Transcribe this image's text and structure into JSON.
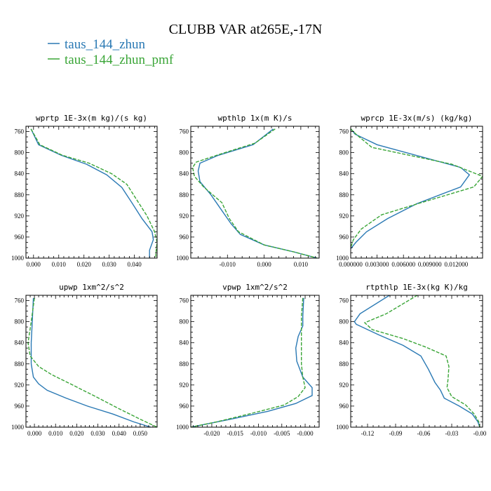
{
  "figure": {
    "title": "CLUBB VAR at265E,-17N",
    "legend": [
      {
        "label": "taus_144_zhun",
        "color": "#2a79b4",
        "dash": "solid"
      },
      {
        "label": "taus_144_zhun_pmf",
        "color": "#3aa537",
        "dash": "dashed"
      }
    ]
  },
  "chart_data": [
    {
      "type": "line",
      "title": "wprtp  1E-3x(m kg)/(s kg)",
      "xlim": [
        -0.003,
        0.049
      ],
      "ylim": [
        1000,
        750
      ],
      "y_reversed": true,
      "xticks": [
        0.0,
        0.01,
        0.02,
        0.03,
        0.04
      ],
      "xtick_labels": [
        "0.000",
        "0.010",
        "0.020",
        "0.030",
        "0.040"
      ],
      "yticks": [
        760,
        800,
        840,
        880,
        920,
        960,
        1000
      ],
      "ytick_labels": [
        "760",
        "800",
        "840",
        "880",
        "920",
        "960",
        "1000"
      ],
      "series": [
        {
          "name": "taus_144_zhun",
          "points": [
            [
              -0.001,
              755
            ],
            [
              0.002,
              785
            ],
            [
              0.011,
              805
            ],
            [
              0.021,
              822
            ],
            [
              0.029,
              842
            ],
            [
              0.035,
              866
            ],
            [
              0.039,
              895
            ],
            [
              0.043,
              925
            ],
            [
              0.047,
              950
            ],
            [
              0.0475,
              965
            ],
            [
              0.046,
              985
            ],
            [
              0.046,
              1000
            ]
          ]
        },
        {
          "name": "taus_144_zhun_pmf",
          "points": [
            [
              -0.001,
              755
            ],
            [
              0.0025,
              785
            ],
            [
              0.0115,
              805
            ],
            [
              0.022,
              820
            ],
            [
              0.031,
              840
            ],
            [
              0.037,
              860
            ],
            [
              0.041,
              890
            ],
            [
              0.045,
              920
            ],
            [
              0.048,
              950
            ],
            [
              0.049,
              970
            ],
            [
              0.0485,
              990
            ],
            [
              0.0485,
              1000
            ]
          ]
        }
      ]
    },
    {
      "type": "line",
      "title": "wpthlp  1x(m K)/s",
      "xlim": [
        -0.02,
        0.015
      ],
      "ylim": [
        1000,
        750
      ],
      "y_reversed": true,
      "xticks": [
        -0.01,
        0.0,
        0.01
      ],
      "xtick_labels": [
        "-0.010",
        "0.000",
        "0.010"
      ],
      "yticks": [
        760,
        800,
        840,
        880,
        920,
        960,
        1000
      ],
      "ytick_labels": [
        "760",
        "800",
        "840",
        "880",
        "920",
        "960",
        "1000"
      ],
      "series": [
        {
          "name": "taus_144_zhun",
          "points": [
            [
              0.0025,
              755
            ],
            [
              -0.003,
              785
            ],
            [
              -0.0125,
              805
            ],
            [
              -0.0175,
              820
            ],
            [
              -0.018,
              835
            ],
            [
              -0.0175,
              855
            ],
            [
              -0.0145,
              880
            ],
            [
              -0.0115,
              910
            ],
            [
              -0.009,
              935
            ],
            [
              -0.0065,
              955
            ],
            [
              0.0,
              975
            ],
            [
              0.008,
              988
            ],
            [
              0.0145,
              1000
            ]
          ]
        },
        {
          "name": "taus_144_zhun_pmf",
          "points": [
            [
              0.003,
              755
            ],
            [
              -0.0025,
              782
            ],
            [
              -0.0125,
              804
            ],
            [
              -0.0185,
              818
            ],
            [
              -0.0195,
              828
            ],
            [
              -0.019,
              845
            ],
            [
              -0.0165,
              865
            ],
            [
              -0.0115,
              895
            ],
            [
              -0.0095,
              925
            ],
            [
              -0.007,
              950
            ],
            [
              0.0,
              975
            ],
            [
              0.008,
              988
            ],
            [
              0.0145,
              1000
            ]
          ]
        }
      ]
    },
    {
      "type": "line",
      "title": "wprcp  1E-3x(m/s) (kg/kg)",
      "xlim": [
        0.0,
        0.015
      ],
      "ylim": [
        1000,
        750
      ],
      "y_reversed": true,
      "xticks": [
        0.0,
        0.003,
        0.006,
        0.009,
        0.012
      ],
      "xtick_labels": [
        "0.000000",
        "0.003000",
        "0.006000",
        "0.009000",
        "0.012000"
      ],
      "yticks": [
        760,
        800,
        840,
        880,
        920,
        960,
        1000
      ],
      "ytick_labels": [
        "760",
        "800",
        "840",
        "880",
        "920",
        "960",
        "1000"
      ],
      "series": [
        {
          "name": "taus_144_zhun",
          "points": [
            [
              0.0,
              755
            ],
            [
              0.0005,
              765
            ],
            [
              0.003,
              785
            ],
            [
              0.0125,
              828
            ],
            [
              0.0135,
              842
            ],
            [
              0.0125,
              865
            ],
            [
              0.0075,
              897
            ],
            [
              0.0042,
              925
            ],
            [
              0.0018,
              950
            ],
            [
              0.0006,
              970
            ],
            [
              0.0,
              982
            ]
          ]
        },
        {
          "name": "taus_144_zhun_pmf",
          "points": [
            [
              0.0,
              755
            ],
            [
              0.0006,
              765
            ],
            [
              0.0024,
              790
            ],
            [
              0.0115,
              822
            ],
            [
              0.015,
              845
            ],
            [
              0.014,
              865
            ],
            [
              0.008,
              895
            ],
            [
              0.0035,
              918
            ],
            [
              0.0012,
              945
            ],
            [
              0.0003,
              965
            ],
            [
              0.0,
              980
            ]
          ]
        }
      ]
    },
    {
      "type": "line",
      "title": "upwp  1xm^2/s^2",
      "xlim": [
        -0.004,
        0.058
      ],
      "ylim": [
        1000,
        750
      ],
      "y_reversed": true,
      "xticks": [
        0.0,
        0.01,
        0.02,
        0.03,
        0.04,
        0.05
      ],
      "xtick_labels": [
        "0.000",
        "0.010",
        "0.020",
        "0.030",
        "0.040",
        "0.050"
      ],
      "yticks": [
        760,
        800,
        840,
        880,
        920,
        960,
        1000
      ],
      "ytick_labels": [
        "760",
        "800",
        "840",
        "880",
        "920",
        "960",
        "1000"
      ],
      "series": [
        {
          "name": "taus_144_zhun",
          "points": [
            [
              -0.0005,
              755
            ],
            [
              -0.001,
              800
            ],
            [
              -0.0015,
              840
            ],
            [
              -0.0015,
              880
            ],
            [
              -0.0005,
              905
            ],
            [
              0.002,
              918
            ],
            [
              0.006,
              930
            ],
            [
              0.015,
              945
            ],
            [
              0.025,
              960
            ],
            [
              0.037,
              975
            ],
            [
              0.047,
              990
            ],
            [
              0.055,
              1000
            ]
          ]
        },
        {
          "name": "taus_144_zhun_pmf",
          "points": [
            [
              0.0,
              755
            ],
            [
              -0.0015,
              800
            ],
            [
              -0.003,
              840
            ],
            [
              -0.002,
              865
            ],
            [
              0.002,
              885
            ],
            [
              0.008,
              900
            ],
            [
              0.018,
              920
            ],
            [
              0.028,
              940
            ],
            [
              0.04,
              965
            ],
            [
              0.05,
              985
            ],
            [
              0.058,
              1000
            ]
          ]
        }
      ]
    },
    {
      "type": "line",
      "title": "vpwp  1xm^2/s^2",
      "xlim": [
        -0.0245,
        0.003
      ],
      "ylim": [
        1000,
        750
      ],
      "y_reversed": true,
      "xticks": [
        -0.02,
        -0.015,
        -0.01,
        -0.005,
        0.0
      ],
      "xtick_labels": [
        "-0.020",
        "-0.015",
        "-0.010",
        "-0.005",
        "-0.000"
      ],
      "yticks": [
        760,
        800,
        840,
        880,
        920,
        960,
        1000
      ],
      "ytick_labels": [
        "760",
        "800",
        "840",
        "880",
        "920",
        "960",
        "1000"
      ],
      "series": [
        {
          "name": "taus_144_zhun",
          "points": [
            [
              -0.0003,
              755
            ],
            [
              -0.0005,
              790
            ],
            [
              -0.0005,
              808
            ],
            [
              -0.0015,
              828
            ],
            [
              -0.002,
              850
            ],
            [
              -0.0018,
              875
            ],
            [
              -0.0005,
              905
            ],
            [
              0.0015,
              925
            ],
            [
              0.0015,
              940
            ],
            [
              -0.002,
              955
            ],
            [
              -0.008,
              970
            ],
            [
              -0.016,
              985
            ],
            [
              -0.0245,
              1000
            ]
          ]
        },
        {
          "name": "taus_144_zhun_pmf",
          "points": [
            [
              -0.0005,
              755
            ],
            [
              -0.0008,
              790
            ],
            [
              -0.0008,
              820
            ],
            [
              -0.0008,
              850
            ],
            [
              -0.0008,
              880
            ],
            [
              -0.0005,
              905
            ],
            [
              0.0,
              925
            ],
            [
              -0.0015,
              942
            ],
            [
              -0.0045,
              958
            ],
            [
              -0.012,
              975
            ],
            [
              -0.019,
              990
            ],
            [
              -0.0245,
              1000
            ]
          ]
        }
      ]
    },
    {
      "type": "line",
      "title": "rtpthlp  1E-3x(kg K)/kg",
      "xlim": [
        -0.138,
        0.003
      ],
      "ylim": [
        1000,
        750
      ],
      "y_reversed": true,
      "xticks": [
        -0.12,
        -0.09,
        -0.06,
        -0.03,
        0.0
      ],
      "xtick_labels": [
        "-0.12",
        "-0.09",
        "-0.06",
        "-0.03",
        "-0.00"
      ],
      "yticks": [
        760,
        800,
        840,
        880,
        920,
        960,
        1000
      ],
      "ytick_labels": [
        "760",
        "800",
        "840",
        "880",
        "920",
        "960",
        "1000"
      ],
      "series": [
        {
          "name": "taus_144_zhun",
          "points": [
            [
              -0.092,
              745
            ],
            [
              -0.128,
              785
            ],
            [
              -0.134,
              800
            ],
            [
              -0.132,
              805
            ],
            [
              -0.108,
              825
            ],
            [
              -0.082,
              845
            ],
            [
              -0.063,
              865
            ],
            [
              -0.055,
              890
            ],
            [
              -0.048,
              915
            ],
            [
              -0.042,
              930
            ],
            [
              -0.038,
              945
            ],
            [
              -0.022,
              960
            ],
            [
              -0.008,
              975
            ],
            [
              -0.002,
              990
            ],
            [
              0.0,
              1000
            ]
          ]
        },
        {
          "name": "taus_144_zhun_pmf",
          "points": [
            [
              -0.062,
              745
            ],
            [
              -0.1,
              785
            ],
            [
              -0.123,
              802
            ],
            [
              -0.115,
              815
            ],
            [
              -0.082,
              832
            ],
            [
              -0.058,
              848
            ],
            [
              -0.036,
              865
            ],
            [
              -0.033,
              885
            ],
            [
              -0.034,
              910
            ],
            [
              -0.035,
              925
            ],
            [
              -0.03,
              942
            ],
            [
              -0.015,
              958
            ],
            [
              -0.006,
              975
            ],
            [
              -0.001,
              990
            ],
            [
              0.0,
              1000
            ]
          ]
        }
      ]
    }
  ]
}
